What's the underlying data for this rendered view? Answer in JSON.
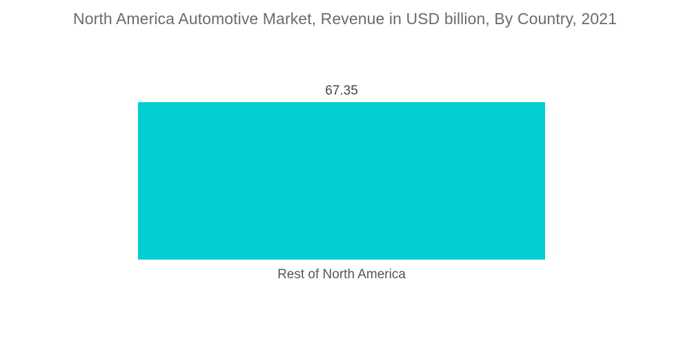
{
  "chart_data": {
    "type": "bar",
    "title": "North America Automotive Market, Revenue in USD billion, By Country, 2021",
    "categories": [
      "Rest of North America"
    ],
    "values": [
      67.35
    ],
    "data_labels": [
      "67.35"
    ],
    "xlabel": "",
    "ylabel": "",
    "ylim": [
      0,
      67.35
    ],
    "grid": false,
    "legend": "none",
    "colors": {
      "bar": "#00ced1",
      "title": "#6b6b6b",
      "label": "#444444"
    }
  }
}
